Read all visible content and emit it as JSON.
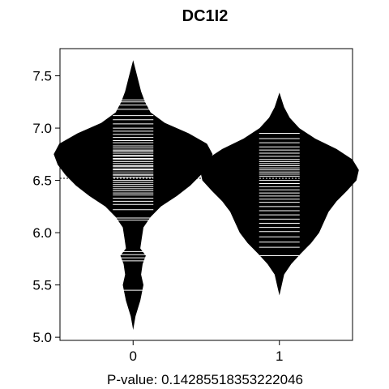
{
  "chart_data": {
    "type": "beanplot",
    "title": "DC1I2",
    "xlabel": "P-value: 0.14285518353222046",
    "ylabel": "",
    "categories": [
      "0",
      "1"
    ],
    "ylim": [
      4.97,
      7.76
    ],
    "y_ticks": [
      5.0,
      5.5,
      6.0,
      6.5,
      7.0,
      7.5
    ],
    "y_tick_labels": [
      "5.0",
      "5.5",
      "6.0",
      "6.5",
      "7.0",
      "7.5"
    ],
    "overall_mean": 6.52,
    "groups": [
      {
        "category": "0",
        "mean": 6.57,
        "range": [
          5.07,
          7.65
        ],
        "density": [
          [
            5.07,
            0.0
          ],
          [
            5.2,
            0.03
          ],
          [
            5.35,
            0.09
          ],
          [
            5.5,
            0.13
          ],
          [
            5.6,
            0.1
          ],
          [
            5.7,
            0.12
          ],
          [
            5.78,
            0.16
          ],
          [
            5.85,
            0.09
          ],
          [
            5.95,
            0.11
          ],
          [
            6.05,
            0.13
          ],
          [
            6.15,
            0.22
          ],
          [
            6.25,
            0.35
          ],
          [
            6.35,
            0.55
          ],
          [
            6.45,
            0.72
          ],
          [
            6.55,
            0.85
          ],
          [
            6.65,
            0.95
          ],
          [
            6.75,
            1.0
          ],
          [
            6.85,
            0.93
          ],
          [
            6.95,
            0.7
          ],
          [
            7.05,
            0.4
          ],
          [
            7.15,
            0.22
          ],
          [
            7.25,
            0.15
          ],
          [
            7.35,
            0.1
          ],
          [
            7.5,
            0.05
          ],
          [
            7.65,
            0.0
          ]
        ],
        "observations": [
          5.45,
          5.73,
          5.76,
          5.79,
          5.82,
          6.12,
          6.14,
          6.22,
          6.27,
          6.3,
          6.33,
          6.36,
          6.38,
          6.4,
          6.42,
          6.44,
          6.46,
          6.48,
          6.5,
          6.52,
          6.53,
          6.55,
          6.56,
          6.58,
          6.6,
          6.61,
          6.63,
          6.64,
          6.66,
          6.68,
          6.7,
          6.71,
          6.73,
          6.74,
          6.76,
          6.78,
          6.79,
          6.81,
          6.83,
          6.86,
          6.88,
          6.91,
          6.94,
          6.97,
          7.0,
          7.04,
          7.08,
          7.12,
          7.18,
          7.22,
          7.25,
          7.27
        ]
      },
      {
        "category": "1",
        "mean": 6.45,
        "range": [
          5.4,
          7.34
        ],
        "density": [
          [
            5.4,
            0.0
          ],
          [
            5.5,
            0.03
          ],
          [
            5.6,
            0.06
          ],
          [
            5.7,
            0.15
          ],
          [
            5.8,
            0.27
          ],
          [
            5.9,
            0.4
          ],
          [
            6.0,
            0.5
          ],
          [
            6.1,
            0.56
          ],
          [
            6.2,
            0.62
          ],
          [
            6.3,
            0.72
          ],
          [
            6.4,
            0.85
          ],
          [
            6.5,
            0.97
          ],
          [
            6.6,
            1.0
          ],
          [
            6.7,
            0.92
          ],
          [
            6.8,
            0.72
          ],
          [
            6.9,
            0.45
          ],
          [
            7.0,
            0.25
          ],
          [
            7.1,
            0.13
          ],
          [
            7.2,
            0.06
          ],
          [
            7.34,
            0.0
          ]
        ],
        "observations": [
          5.78,
          5.86,
          5.91,
          5.96,
          6.01,
          6.05,
          6.09,
          6.13,
          6.17,
          6.21,
          6.25,
          6.29,
          6.32,
          6.35,
          6.38,
          6.41,
          6.44,
          6.47,
          6.5,
          6.52,
          6.54,
          6.56,
          6.58,
          6.6,
          6.62,
          6.64,
          6.66,
          6.68,
          6.7,
          6.73,
          6.76,
          6.79,
          6.82,
          6.86,
          6.9,
          6.95
        ]
      }
    ],
    "colors": {
      "bean_fill": "#000000",
      "observation_line": "#ffffff",
      "mean_line": "#000000",
      "frame": "#000000"
    },
    "grid": false,
    "legend": "none"
  }
}
